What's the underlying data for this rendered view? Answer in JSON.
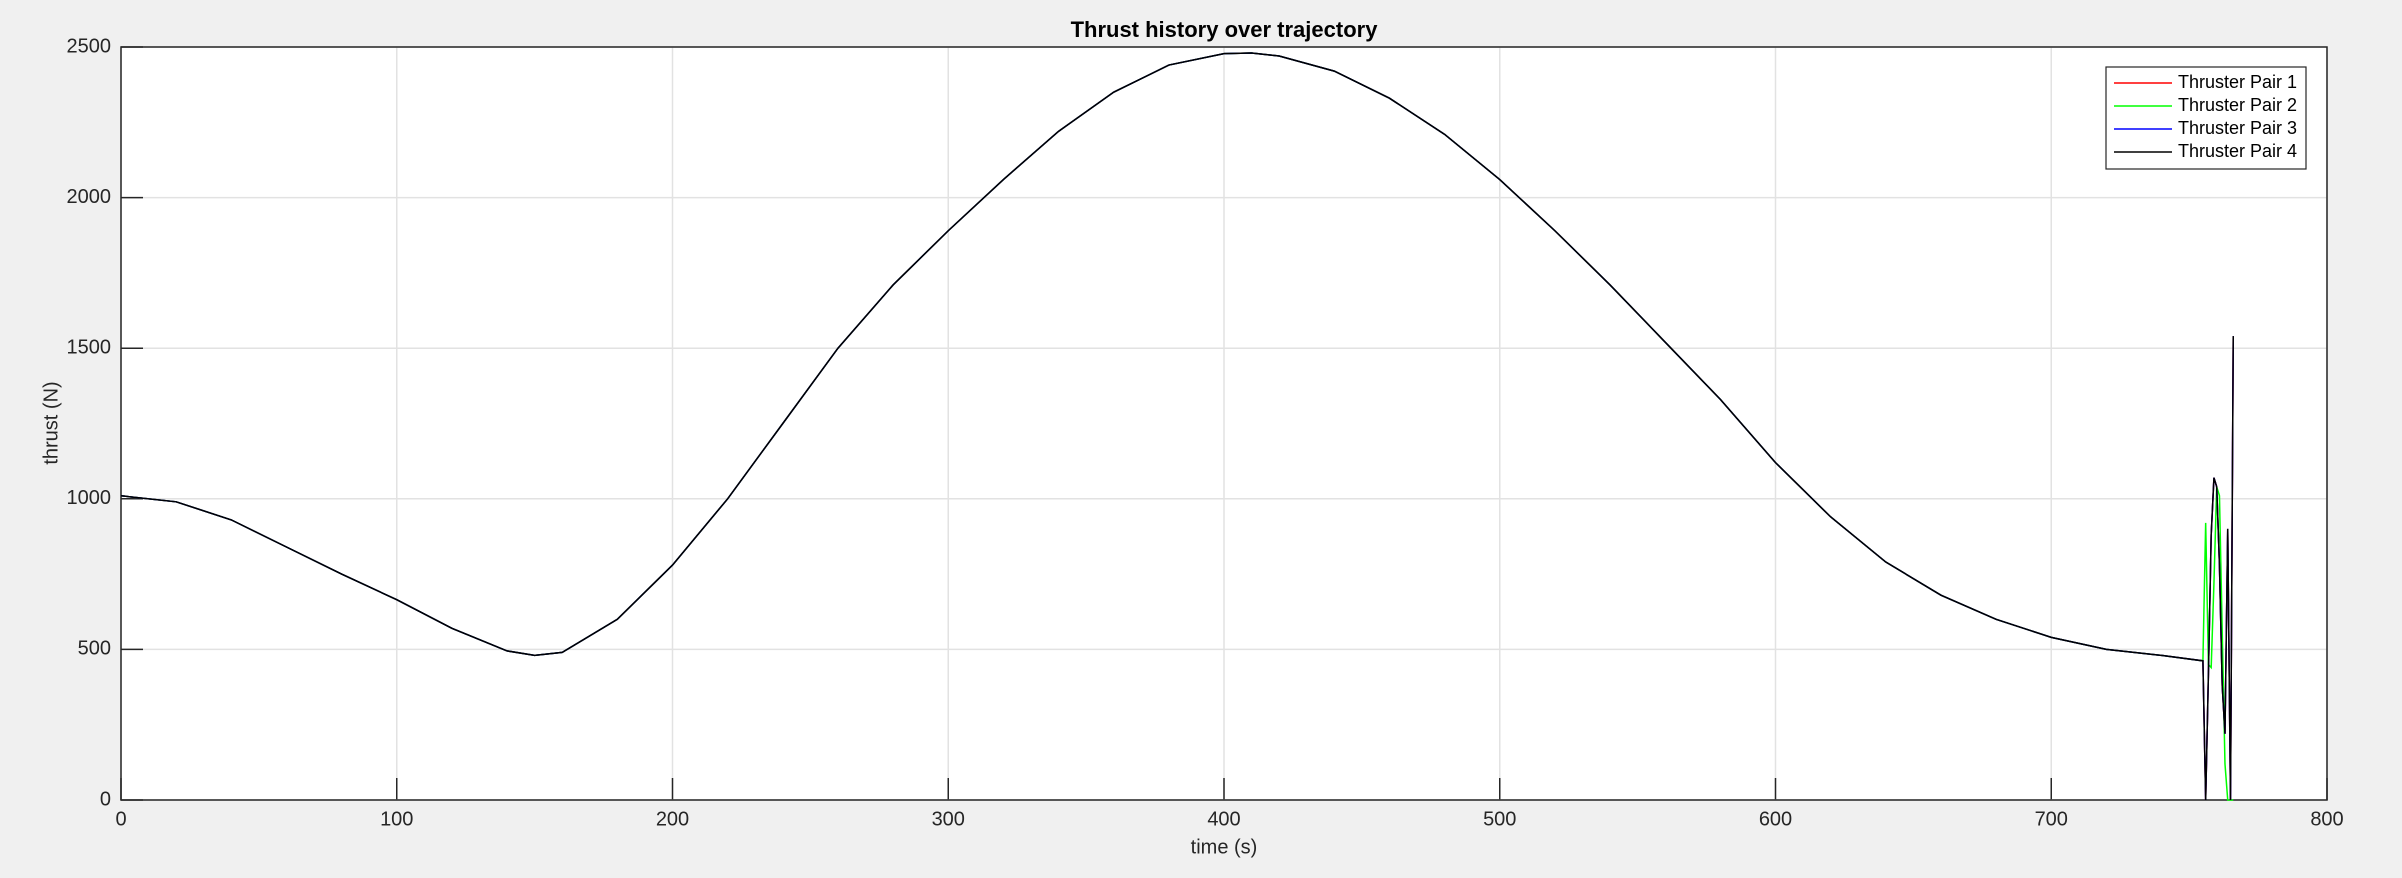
{
  "chart_data": {
    "type": "line",
    "title": "Thrust history over trajectory",
    "x_label": "time (s)",
    "y_label": "thrust (N)",
    "xlim": [
      0,
      800
    ],
    "xticks": [
      0,
      100,
      200,
      300,
      400,
      500,
      600,
      700,
      800
    ],
    "ylim": [
      0,
      2500
    ],
    "yticks": [
      0,
      500,
      1000,
      1500,
      2000,
      2500
    ],
    "grid": true,
    "legend": "northeast",
    "x": [
      0,
      20,
      40,
      60,
      80,
      100,
      120,
      140,
      150,
      160,
      180,
      200,
      220,
      240,
      260,
      280,
      300,
      320,
      340,
      360,
      380,
      400,
      410,
      420,
      440,
      460,
      480,
      500,
      520,
      540,
      560,
      580,
      600,
      620,
      640,
      660,
      680,
      700,
      720,
      740,
      755,
      756,
      757,
      758,
      759,
      760,
      761,
      762,
      763,
      764,
      765,
      766
    ],
    "series": [
      {
        "name": "Thruster Pair 1",
        "color": "#ff0000",
        "values": [
          1010,
          990,
          930,
          840,
          750,
          665,
          570,
          495,
          480,
          490,
          600,
          780,
          1000,
          1250,
          1500,
          1710,
          1890,
          2060,
          2220,
          2350,
          2440,
          2478,
          2480,
          2470,
          2420,
          2330,
          2210,
          2060,
          1890,
          1710,
          1520,
          1330,
          1120,
          940,
          790,
          680,
          600,
          540,
          500,
          480,
          462,
          0,
          420,
          880,
          1070,
          1040,
          780,
          380,
          220,
          900,
          0,
          1540
        ]
      },
      {
        "name": "Thruster Pair 2",
        "color": "#00ff00",
        "values": [
          1010,
          990,
          930,
          840,
          750,
          665,
          570,
          495,
          480,
          490,
          600,
          780,
          1000,
          1250,
          1500,
          1710,
          1890,
          2060,
          2220,
          2350,
          2440,
          2478,
          2480,
          2470,
          2420,
          2330,
          2210,
          2060,
          1890,
          1710,
          1520,
          1330,
          1120,
          940,
          790,
          680,
          600,
          540,
          500,
          480,
          462,
          920,
          450,
          440,
          720,
          1040,
          1010,
          560,
          120,
          0,
          0,
          0
        ]
      },
      {
        "name": "Thruster Pair 3",
        "color": "#0000ff",
        "values": [
          1010,
          990,
          930,
          840,
          750,
          665,
          570,
          495,
          480,
          490,
          600,
          780,
          1000,
          1250,
          1500,
          1710,
          1890,
          2060,
          2220,
          2350,
          2440,
          2478,
          2480,
          2470,
          2420,
          2330,
          2210,
          2060,
          1890,
          1710,
          1520,
          1330,
          1120,
          940,
          790,
          680,
          600,
          540,
          500,
          480,
          462,
          0,
          420,
          880,
          1070,
          1040,
          780,
          380,
          220,
          900,
          0,
          1540
        ]
      },
      {
        "name": "Thruster Pair 4",
        "color": "#000000",
        "values": [
          1010,
          990,
          930,
          840,
          750,
          665,
          570,
          495,
          480,
          490,
          600,
          780,
          1000,
          1250,
          1500,
          1710,
          1890,
          2060,
          2220,
          2350,
          2440,
          2478,
          2480,
          2470,
          2420,
          2330,
          2210,
          2060,
          1890,
          1710,
          1520,
          1330,
          1120,
          940,
          790,
          680,
          600,
          540,
          500,
          480,
          462,
          0,
          420,
          880,
          1070,
          1040,
          780,
          380,
          220,
          900,
          0,
          1540
        ]
      }
    ]
  }
}
